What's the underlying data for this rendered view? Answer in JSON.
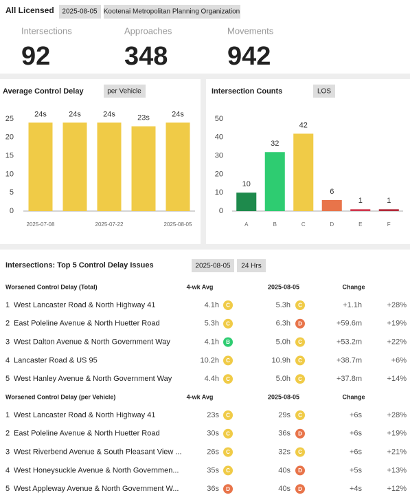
{
  "header": {
    "title": "All Licensed",
    "date": "2025-08-05",
    "agency": "Kootenai Metropolitan Planning Organization"
  },
  "kpis": [
    {
      "label": "Intersections",
      "value": 92
    },
    {
      "label": "Approaches",
      "value": 348
    },
    {
      "label": "Movements",
      "value": 942
    }
  ],
  "chart_data": [
    {
      "type": "bar",
      "title": "Average Control Delay",
      "badge": "per Vehicle",
      "categories": [
        "2025-07-08",
        null,
        "2025-07-22",
        null,
        "2025-08-05"
      ],
      "values": [
        24,
        24,
        24,
        23,
        24
      ],
      "value_labels": [
        "24s",
        "24s",
        "24s",
        "23s",
        "24s"
      ],
      "color": "#f0cb47",
      "ylim": [
        0,
        25
      ],
      "yticks": [
        0,
        5,
        10,
        15,
        20,
        25
      ],
      "grid": false
    },
    {
      "type": "bar",
      "title": "Intersection Counts",
      "badge": "LOS",
      "categories": [
        "A",
        "B",
        "C",
        "D",
        "E",
        "F"
      ],
      "values": [
        10,
        32,
        42,
        6,
        1,
        1
      ],
      "colors": [
        "#1e8a4c",
        "#2ecc71",
        "#f0cb47",
        "#e8744a",
        "#d0394f",
        "#b22a3a"
      ],
      "ylim": [
        0,
        50
      ],
      "yticks": [
        0,
        10,
        20,
        30,
        40,
        50
      ],
      "grid": false
    }
  ],
  "issues": {
    "title": "Intersections: Top 5 Control Delay Issues",
    "date": "2025-08-05",
    "period": "24 Hrs",
    "grade_colors": {
      "B": "#2ecc71",
      "C": "#f0cb47",
      "D": "#e8744a"
    },
    "tables": [
      {
        "header": [
          "Worsened Control Delay (Total)",
          "4-wk Avg",
          "2025-08-05",
          "Change"
        ],
        "rows": [
          [
            "1",
            "West Lancaster Road & North Highway 41",
            "4.1h",
            "C",
            "5.3h",
            "C",
            "+1.1h",
            "+28%"
          ],
          [
            "2",
            "East Poleline Avenue & North Huetter Road",
            "5.3h",
            "C",
            "6.3h",
            "D",
            "+59.6m",
            "+19%"
          ],
          [
            "3",
            "West Dalton Avenue & North Government Way",
            "4.1h",
            "B",
            "5.0h",
            "C",
            "+53.2m",
            "+22%"
          ],
          [
            "4",
            "Lancaster Road & US 95",
            "10.2h",
            "C",
            "10.9h",
            "C",
            "+38.7m",
            "+6%"
          ],
          [
            "5",
            "West Hanley Avenue & North Government Way",
            "4.4h",
            "C",
            "5.0h",
            "C",
            "+37.8m",
            "+14%"
          ]
        ]
      },
      {
        "header": [
          "Worsened Control Delay (per Vehicle)",
          "4-wk Avg",
          "2025-08-05",
          "Change"
        ],
        "rows": [
          [
            "1",
            "West Lancaster Road & North Highway 41",
            "23s",
            "C",
            "29s",
            "C",
            "+6s",
            "+28%"
          ],
          [
            "2",
            "East Poleline Avenue & North Huetter Road",
            "30s",
            "C",
            "36s",
            "D",
            "+6s",
            "+19%"
          ],
          [
            "3",
            "West Riverbend Avenue & South Pleasant View ...",
            "26s",
            "C",
            "32s",
            "C",
            "+6s",
            "+21%"
          ],
          [
            "4",
            "West Honeysuckle Avenue & North Governmen...",
            "35s",
            "C",
            "40s",
            "D",
            "+5s",
            "+13%"
          ],
          [
            "5",
            "West Appleway Avenue & North Government W...",
            "36s",
            "D",
            "40s",
            "D",
            "+4s",
            "+12%"
          ]
        ]
      }
    ]
  }
}
